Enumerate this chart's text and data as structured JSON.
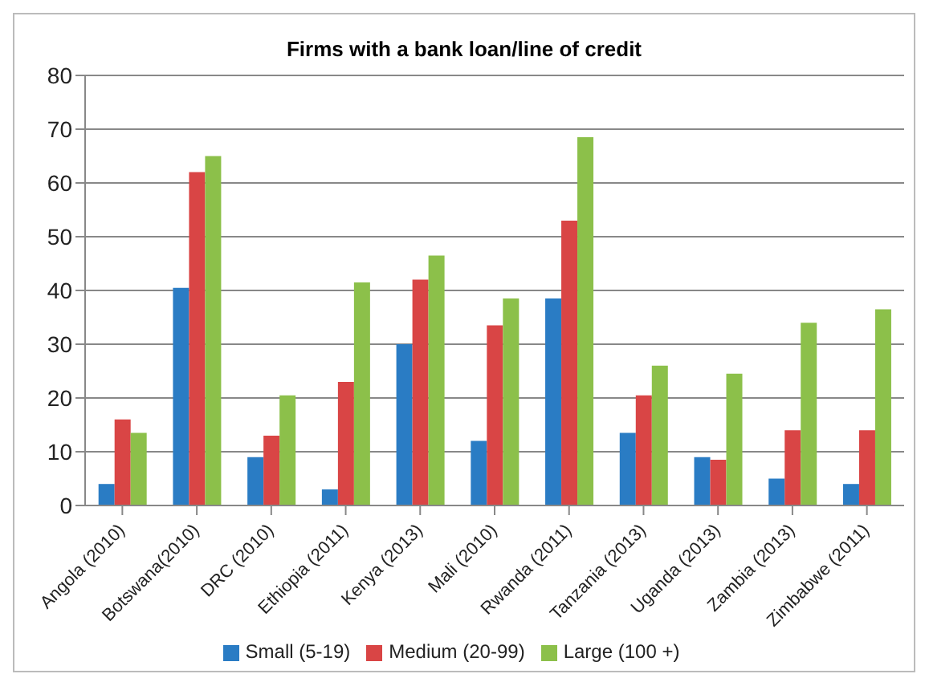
{
  "chart_data": {
    "type": "bar",
    "title": "Firms with a bank loan/line of credit",
    "categories": [
      "Angola (2010)",
      "Botswana(2010)",
      "DRC (2010)",
      "Ethiopia (2011)",
      "Kenya (2013)",
      "Mali (2010)",
      "Rwanda (2011)",
      "Tanzania (2013)",
      "Uganda (2013)",
      "Zambia (2013)",
      "Zimbabwe (2011)"
    ],
    "series": [
      {
        "name": "Small (5-19)",
        "color": "#2a7cc4",
        "values": [
          4,
          40.5,
          9,
          3,
          30,
          12,
          38.5,
          13.5,
          9,
          5,
          4
        ]
      },
      {
        "name": "Medium (20-99)",
        "color": "#d94545",
        "values": [
          16,
          62,
          13,
          23,
          42,
          33.5,
          53,
          20.5,
          8.5,
          14,
          14
        ]
      },
      {
        "name": "Large (100 +)",
        "color": "#8cc04a",
        "values": [
          13.5,
          65,
          20.5,
          41.5,
          46.5,
          38.5,
          68.5,
          26,
          24.5,
          34,
          36.5
        ]
      }
    ],
    "ylim": [
      0,
      80
    ],
    "yticks": [
      0,
      10,
      20,
      30,
      40,
      50,
      60,
      70,
      80
    ],
    "grid": "y",
    "legend": "bottom"
  }
}
